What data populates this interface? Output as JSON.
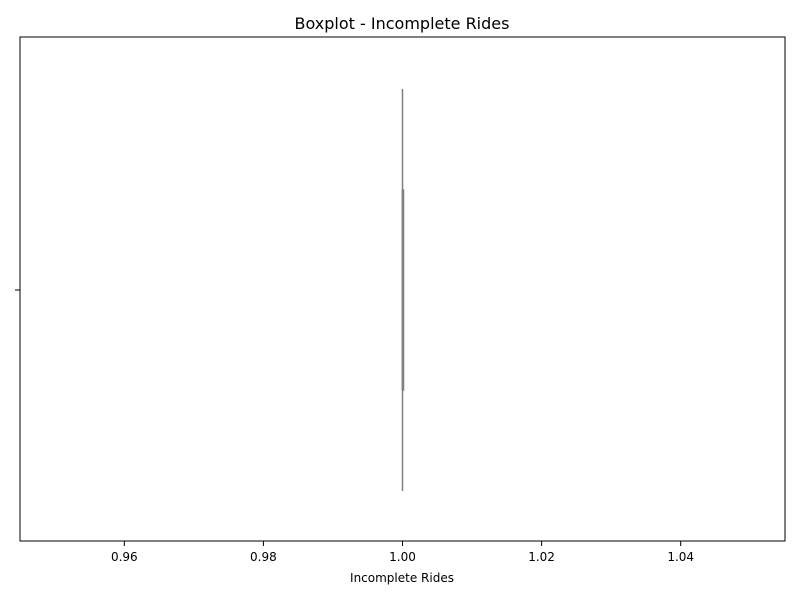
{
  "chart_data": {
    "type": "boxplot",
    "title": "Boxplot - Incomplete Rides",
    "xlabel": "Incomplete Rides",
    "ylabel": "",
    "orientation": "horizontal",
    "xlim": [
      0.945,
      1.055
    ],
    "xticks": [
      0.96,
      0.98,
      1.0,
      1.02,
      1.04
    ],
    "xtick_labels": [
      "0.96",
      "0.98",
      "1.00",
      "1.02",
      "1.04"
    ],
    "boxes": [
      {
        "min": 1.0,
        "q1": 1.0,
        "median": 1.0,
        "q3": 1.0,
        "max": 1.0
      }
    ],
    "grid": false,
    "colors": {
      "box": "#808080",
      "axis": "#000000"
    }
  }
}
